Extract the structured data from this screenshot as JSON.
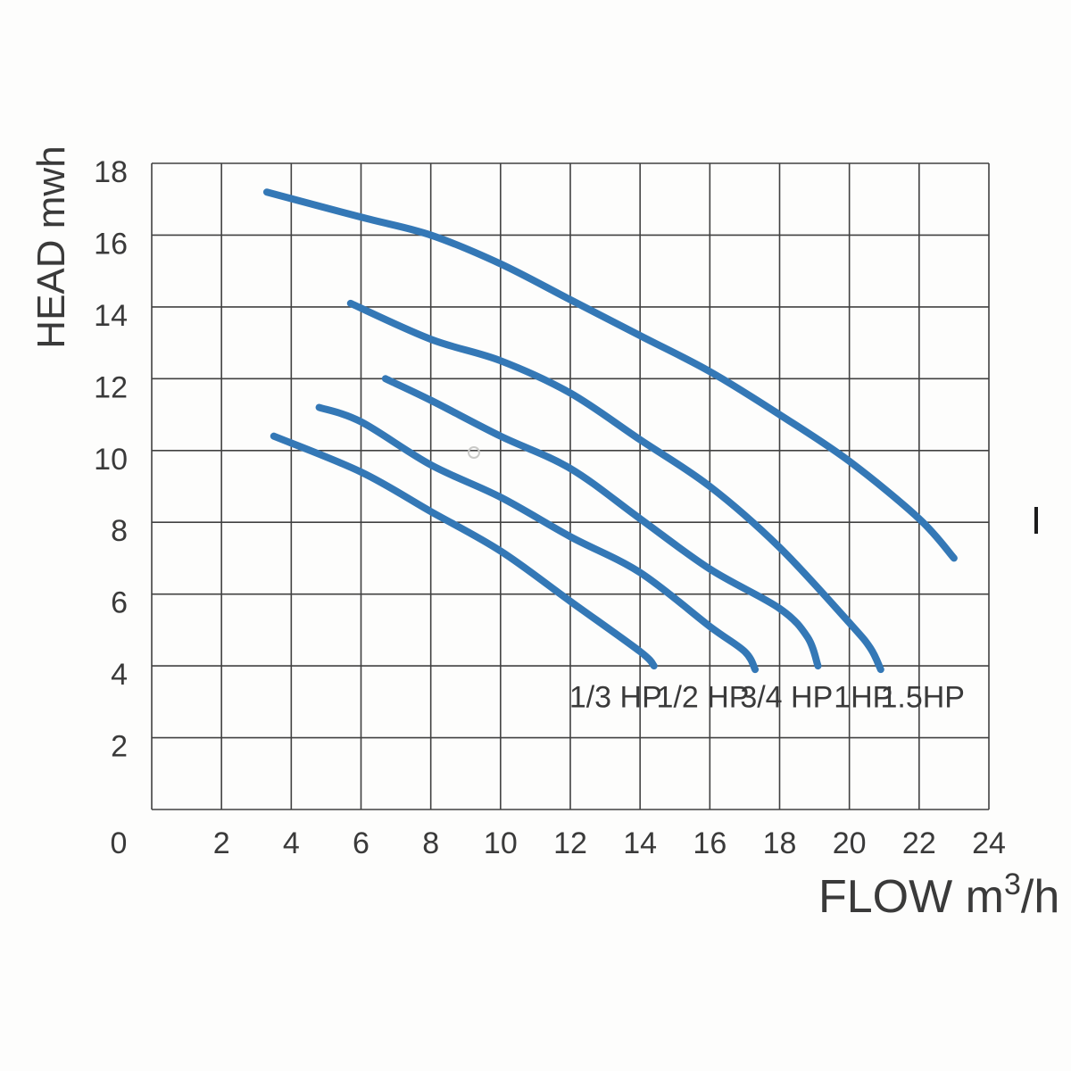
{
  "chart_data": {
    "type": "line",
    "title": "",
    "ylabel": "HEAD mwh",
    "xlabel": "FLOW m³/h",
    "xlabel_parts": {
      "pre": "FLOW  m",
      "sup": "3",
      "post": "/h"
    },
    "xlim": [
      0,
      24
    ],
    "ylim": [
      0,
      18
    ],
    "x_ticks": [
      2,
      4,
      6,
      8,
      10,
      12,
      14,
      16,
      18,
      20,
      22,
      24
    ],
    "y_ticks": [
      2,
      4,
      6,
      8,
      10,
      12,
      14,
      16,
      18
    ],
    "origin_label": "0",
    "grid": true,
    "grid_step": 2,
    "legend_position": "inside-bottom",
    "series": [
      {
        "name": "1.5HP",
        "points": [
          [
            3.3,
            17.2
          ],
          [
            6,
            16.5
          ],
          [
            8,
            16.0
          ],
          [
            10,
            15.2
          ],
          [
            12,
            14.2
          ],
          [
            14,
            13.2
          ],
          [
            16,
            12.2
          ],
          [
            18,
            11.0
          ],
          [
            20,
            9.7
          ],
          [
            22,
            8.1
          ],
          [
            23,
            7.0
          ]
        ]
      },
      {
        "name": "1HP",
        "points": [
          [
            5.7,
            14.1
          ],
          [
            8,
            13.1
          ],
          [
            10,
            12.5
          ],
          [
            12,
            11.6
          ],
          [
            14,
            10.3
          ],
          [
            16,
            9.0
          ],
          [
            18,
            7.3
          ],
          [
            20,
            5.2
          ],
          [
            20.6,
            4.5
          ],
          [
            20.9,
            3.9
          ]
        ]
      },
      {
        "name": "3/4 HP",
        "points": [
          [
            6.7,
            12.0
          ],
          [
            8,
            11.4
          ],
          [
            10,
            10.4
          ],
          [
            12,
            9.5
          ],
          [
            14,
            8.1
          ],
          [
            16,
            6.7
          ],
          [
            18,
            5.6
          ],
          [
            18.8,
            4.8
          ],
          [
            19.1,
            4.0
          ]
        ]
      },
      {
        "name": "1/2 HP",
        "points": [
          [
            4.8,
            11.2
          ],
          [
            6,
            10.8
          ],
          [
            8,
            9.6
          ],
          [
            10,
            8.7
          ],
          [
            12,
            7.6
          ],
          [
            14,
            6.6
          ],
          [
            16,
            5.1
          ],
          [
            17,
            4.4
          ],
          [
            17.3,
            3.9
          ]
        ]
      },
      {
        "name": "1/3 HP",
        "points": [
          [
            3.5,
            10.4
          ],
          [
            6,
            9.4
          ],
          [
            8,
            8.3
          ],
          [
            10,
            7.2
          ],
          [
            12,
            5.8
          ],
          [
            14,
            4.4
          ],
          [
            14.4,
            4.0
          ]
        ]
      }
    ],
    "series_labels": [
      {
        "text": "1/3 HP",
        "flow": 13.3,
        "head": 2.85
      },
      {
        "text": "1/2 HP",
        "flow": 15.8,
        "head": 2.85
      },
      {
        "text": "3/4 HP",
        "flow": 18.2,
        "head": 2.85
      },
      {
        "text": "1HP",
        "flow": 20.4,
        "head": 2.85
      },
      {
        "text": "1.5HP",
        "flow": 22.1,
        "head": 2.85
      }
    ],
    "colors": {
      "curve": "#3478b6",
      "grid": "#414141",
      "text": "#3a3a3a",
      "background": "#fdfdfc",
      "artifact": "#1c1c1c",
      "stray_dot": "#c9c9c7"
    }
  }
}
